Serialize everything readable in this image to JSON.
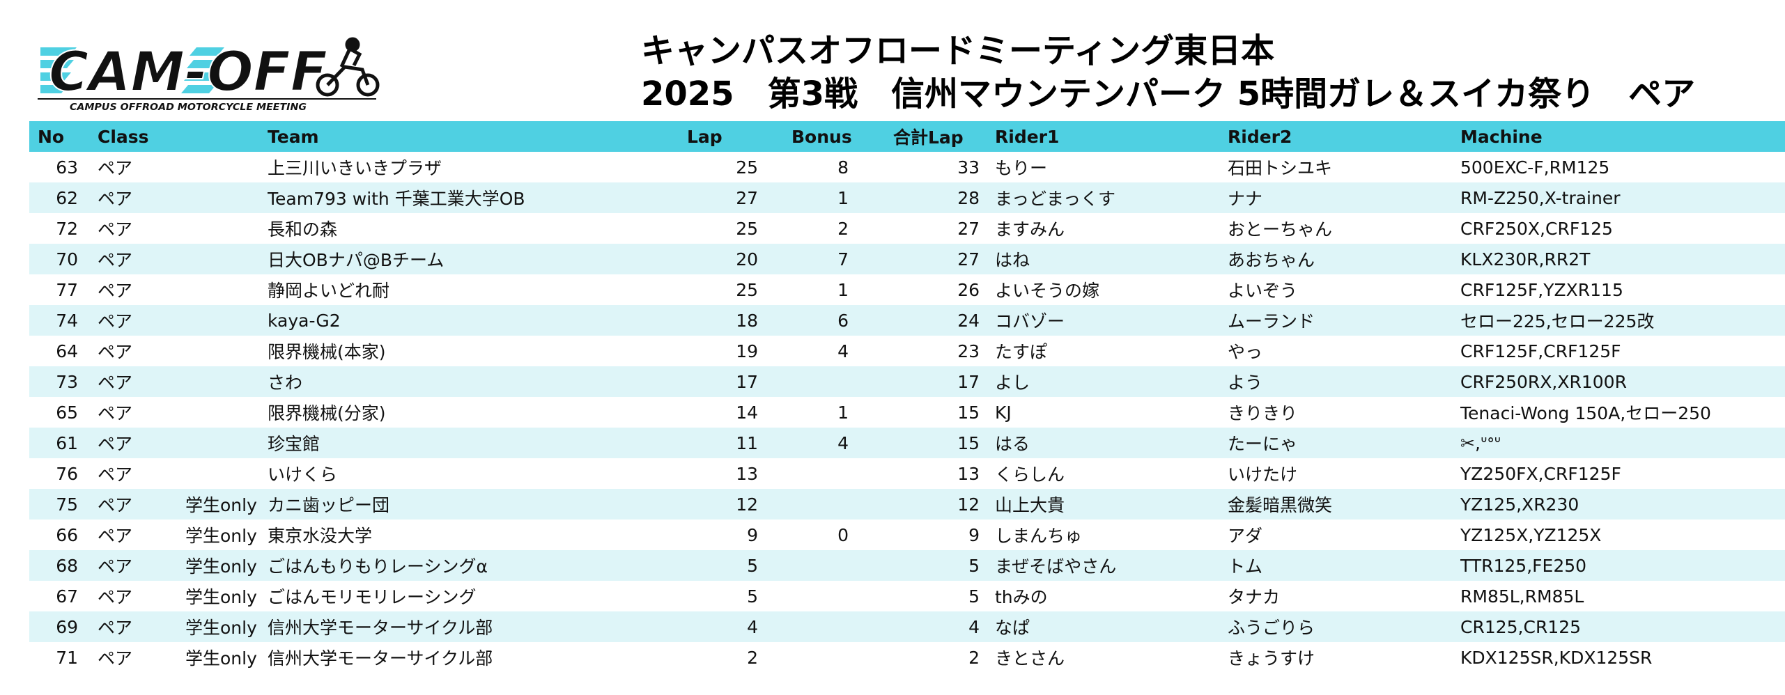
{
  "header": {
    "logo": {
      "wordmark": "CAM-OFF",
      "tagline": "CAMPUS OFFROAD MOTORCYCLE MEETING",
      "icon": "motocross-rider-icon",
      "colors": {
        "stripes": "#4fd0e2",
        "ink": "#111111"
      }
    },
    "title_line1": "キャンパスオフロードミーティング東日本",
    "title_line2": "2025　第3戦　信州マウンテンパーク 5時間ガレ＆スイカ祭り　ペア"
  },
  "table": {
    "header_color": "#4fd0e2",
    "stripe_color": "#def5f8",
    "columns": {
      "no": "No",
      "class": "Class",
      "team": "Team",
      "lap": "Lap",
      "bonus": "Bonus",
      "total": "合計Lap",
      "rider1": "Rider1",
      "rider2": "Rider2",
      "machine": "Machine"
    },
    "rows": [
      {
        "no": "63",
        "class": "ペア",
        "sub": "",
        "team": "上三川いきいきプラザ",
        "lap": "25",
        "bonus": "8",
        "total": "33",
        "rider1": "もりー",
        "rider2": "石田トシユキ",
        "machine": "500EXC-F,RM125"
      },
      {
        "no": "62",
        "class": "ペア",
        "sub": "",
        "team": "Team793 with 千葉工業大学OB",
        "lap": "27",
        "bonus": "1",
        "total": "28",
        "rider1": "まっどまっくす",
        "rider2": "ナナ",
        "machine": "RM-Z250,X-trainer"
      },
      {
        "no": "72",
        "class": "ペア",
        "sub": "",
        "team": "長和の森",
        "lap": "25",
        "bonus": "2",
        "total": "27",
        "rider1": "ますみん",
        "rider2": "おとーちゃん",
        "machine": "CRF250X,CRF125"
      },
      {
        "no": "70",
        "class": "ペア",
        "sub": "",
        "team": "日大OBナパ@Bチーム",
        "lap": "20",
        "bonus": "7",
        "total": "27",
        "rider1": "はね",
        "rider2": "あおちゃん",
        "machine": "KLX230R,RR2T"
      },
      {
        "no": "77",
        "class": "ペア",
        "sub": "",
        "team": "静岡よいどれ耐",
        "lap": "25",
        "bonus": "1",
        "total": "26",
        "rider1": "よいそうの嫁",
        "rider2": "よいぞう",
        "machine": "CRF125F,YZXR115"
      },
      {
        "no": "74",
        "class": "ペア",
        "sub": "",
        "team": "kaya-G2",
        "lap": "18",
        "bonus": "6",
        "total": "24",
        "rider1": "コバゾー",
        "rider2": "ムーランド",
        "machine": "セロー225,セロー225改"
      },
      {
        "no": "64",
        "class": "ペア",
        "sub": "",
        "team": "限界機械(本家)",
        "lap": "19",
        "bonus": "4",
        "total": "23",
        "rider1": "たすぽ",
        "rider2": "やっ",
        "machine": "CRF125F,CRF125F"
      },
      {
        "no": "73",
        "class": "ペア",
        "sub": "",
        "team": "さわ",
        "lap": "17",
        "bonus": "",
        "total": "17",
        "rider1": "よし",
        "rider2": "よう",
        "machine": "CRF250RX,XR100R"
      },
      {
        "no": "65",
        "class": "ペア",
        "sub": "",
        "team": "限界機械(分家)",
        "lap": "14",
        "bonus": "1",
        "total": "15",
        "rider1": "KJ",
        "rider2": "きりきり",
        "machine": "Tenaci-Wong 150A,セロー250"
      },
      {
        "no": "61",
        "class": "ペア",
        "sub": "",
        "team": "珍宝館",
        "lap": "11",
        "bonus": "4",
        "total": "15",
        "rider1": "はる",
        "rider2": "たーにゃ",
        "machine": "✂︎,ᐡᐤᐡ"
      },
      {
        "no": "76",
        "class": "ペア",
        "sub": "",
        "team": "いけくら",
        "lap": "13",
        "bonus": "",
        "total": "13",
        "rider1": "くらしん",
        "rider2": "いけたけ",
        "machine": "YZ250FX,CRF125F"
      },
      {
        "no": "75",
        "class": "ペア",
        "sub": "学生only",
        "team": "カニ歯ッピー団",
        "lap": "12",
        "bonus": "",
        "total": "12",
        "rider1": "山上大貴",
        "rider2": "金髪暗黒微笑",
        "machine": "YZ125,XR230"
      },
      {
        "no": "66",
        "class": "ペア",
        "sub": "学生only",
        "team": "東京水没大学",
        "lap": "9",
        "bonus": "0",
        "total": "9",
        "rider1": "しまんちゅ",
        "rider2": "アダ",
        "machine": "YZ125X,YZ125X"
      },
      {
        "no": "68",
        "class": "ペア",
        "sub": "学生only",
        "team": "ごはんもりもりレーシングα",
        "lap": "5",
        "bonus": "",
        "total": "5",
        "rider1": "まぜそばやさん",
        "rider2": "トム",
        "machine": "TTR125,FE250"
      },
      {
        "no": "67",
        "class": "ペア",
        "sub": "学生only",
        "team": "ごはんモリモリレーシング",
        "lap": "5",
        "bonus": "",
        "total": "5",
        "rider1": "thみの",
        "rider2": "タナカ",
        "machine": "RM85L,RM85L"
      },
      {
        "no": "69",
        "class": "ペア",
        "sub": "学生only",
        "team": "信州大学モーターサイクル部",
        "lap": "4",
        "bonus": "",
        "total": "4",
        "rider1": "なぱ",
        "rider2": "ふうごりら",
        "machine": "CR125,CR125"
      },
      {
        "no": "71",
        "class": "ペア",
        "sub": "学生only",
        "team": "信州大学モーターサイクル部",
        "lap": "2",
        "bonus": "",
        "total": "2",
        "rider1": "きとさん",
        "rider2": "きょうすけ",
        "machine": "KDX125SR,KDX125SR"
      }
    ]
  }
}
